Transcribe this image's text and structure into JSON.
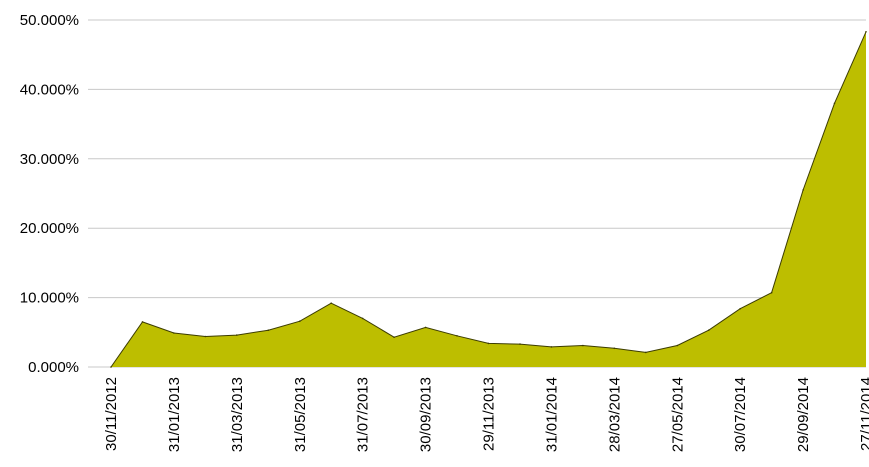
{
  "chart_data": {
    "type": "area",
    "title": "",
    "xlabel": "",
    "ylabel": "",
    "ylim": [
      0,
      50
    ],
    "y_unit": "%",
    "grid": true,
    "legend": "none",
    "colors": {
      "fill": "#bdbe00",
      "stroke": "#3c3c00",
      "grid": "#c8c8c8"
    },
    "y_ticks": [
      "0.000%",
      "10.000%",
      "20.000%",
      "30.000%",
      "40.000%",
      "50.000%"
    ],
    "x_tick_labels": [
      "30/11/2012",
      "31/01/2013",
      "31/03/2013",
      "31/05/2013",
      "31/07/2013",
      "30/09/2013",
      "29/11/2013",
      "31/01/2014",
      "28/03/2014",
      "27/05/2014",
      "30/07/2014",
      "29/09/2014",
      "27/11/2014"
    ],
    "x": [
      "30/11/2012",
      "31/12/2012",
      "31/01/2013",
      "28/02/2013",
      "31/03/2013",
      "30/04/2013",
      "31/05/2013",
      "30/06/2013",
      "31/07/2013",
      "31/08/2013",
      "30/09/2013",
      "31/10/2013",
      "29/11/2013",
      "31/12/2013",
      "31/01/2014",
      "28/02/2014",
      "28/03/2014",
      "30/04/2014",
      "27/05/2014",
      "30/06/2014",
      "30/07/2014",
      "29/08/2014",
      "29/09/2014",
      "31/10/2014",
      "27/11/2014"
    ],
    "values": [
      0.0,
      6.5,
      4.9,
      4.4,
      4.6,
      5.3,
      6.6,
      9.2,
      7.0,
      4.3,
      5.7,
      4.5,
      3.4,
      3.3,
      2.9,
      3.1,
      2.7,
      2.1,
      3.1,
      5.3,
      8.4,
      10.7,
      25.5,
      38.0,
      48.3
    ]
  }
}
